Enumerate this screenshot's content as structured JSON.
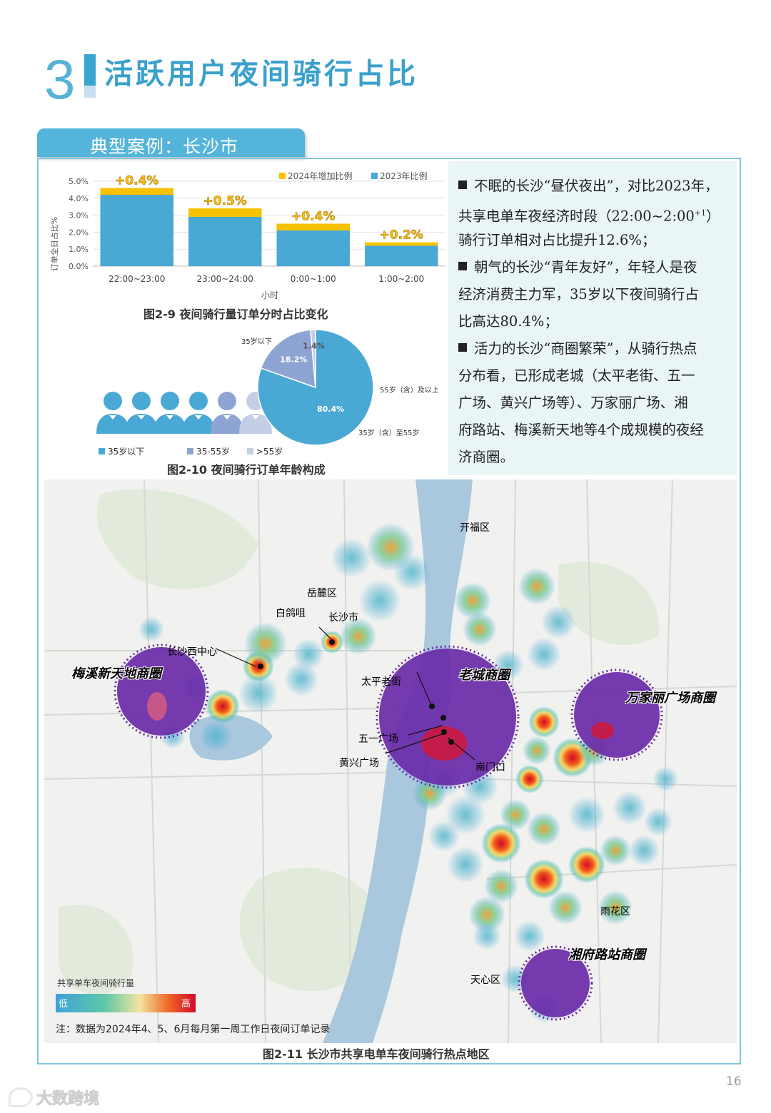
{
  "header": {
    "section_number": "3",
    "section_title": "活跃用户夜间骑行占比"
  },
  "case_tab": "典型案例：长沙市",
  "text_panel": {
    "lines": [
      "不眠的长沙“昼伏夜出”，对比2023年，",
      "共享电单车夜经济时段（22:00~2:00",
      "骑行订单相对占比提升12.6%；",
      "朝气的长沙“青年友好”，年轻人是夜",
      "经济消费主力军，35岁以下夜间骑行占",
      "比高达80.4%；",
      "活力的长沙“商圈繁荣”，从骑行热点",
      "分布看，已形成老城（太平老街、五一",
      "广场、黄兴广场等）、万家丽广场、湘",
      "府路站、梅溪新天地等4个成规模的夜经",
      "济商圈。"
    ],
    "superscript": "+1",
    "after_super": "）"
  },
  "chart_data": [
    {
      "type": "bar",
      "stacked": true,
      "categories": [
        "22:00~23:00",
        "23:00~24:00",
        "0:00~1:00",
        "1:00~2:00"
      ],
      "series": [
        {
          "name": "2023年比例",
          "values": [
            4.2,
            2.9,
            2.1,
            1.2
          ],
          "color": "#4aa8d4"
        },
        {
          "name": "2024年增加比例",
          "values": [
            0.4,
            0.5,
            0.4,
            0.2
          ],
          "color": "#f8c100"
        }
      ],
      "data_labels": [
        "+0.4%",
        "+0.5%",
        "+0.4%",
        "+0.2%"
      ],
      "ylabel": "订单全日占比%",
      "xlabel": "小时",
      "ylim": [
        0,
        5
      ],
      "yticks": [
        "0.0%",
        "1.0%",
        "2.0%",
        "3.0%",
        "4.0%",
        "5.0%"
      ],
      "legend": "top-right",
      "caption": "图2-9 夜间骑行量订单分时占比变化"
    },
    {
      "type": "pie",
      "categories": [
        "35岁以下",
        "35岁（含）至55岁",
        "55岁（含）及以上"
      ],
      "values": [
        80.4,
        18.2,
        1.4
      ],
      "value_labels": [
        "80.4%",
        "18.2%",
        "1.4%"
      ],
      "colors": [
        "#4aa8d4",
        "#8ea4d2",
        "#c3cde6"
      ],
      "legend": [
        "35岁以下",
        "35-55岁",
        ">55岁"
      ],
      "caption": "图2-10 夜间骑行订单年龄构成"
    }
  ],
  "map": {
    "district_labels": [
      "开福区",
      "岳麓区",
      "雨花区",
      "天心区"
    ],
    "place_labels": [
      "白鸽咀",
      "长沙市",
      "长沙西中心",
      "太平老街",
      "五一广场",
      "黄兴广场",
      "南门口"
    ],
    "zones": [
      "梅溪新天地商圈",
      "老城商圈",
      "万家丽广场商圈",
      "湘府路站商圈"
    ],
    "legend_title": "共享单车夜间骑行量",
    "legend_low": "低",
    "legend_high": "高",
    "note": "注：数据为2024年4、5、6月每月第一周工作日夜间订单记录",
    "caption": "图2-11 长沙市共享电单车夜间骑行热点地区"
  },
  "page_number": "16",
  "watermark": "大数跨境",
  "colors": {
    "accent": "#3aa0cc",
    "bar_base": "#4aa8d4",
    "bar_inc": "#f8c100",
    "zone": "#6a2aa8"
  }
}
